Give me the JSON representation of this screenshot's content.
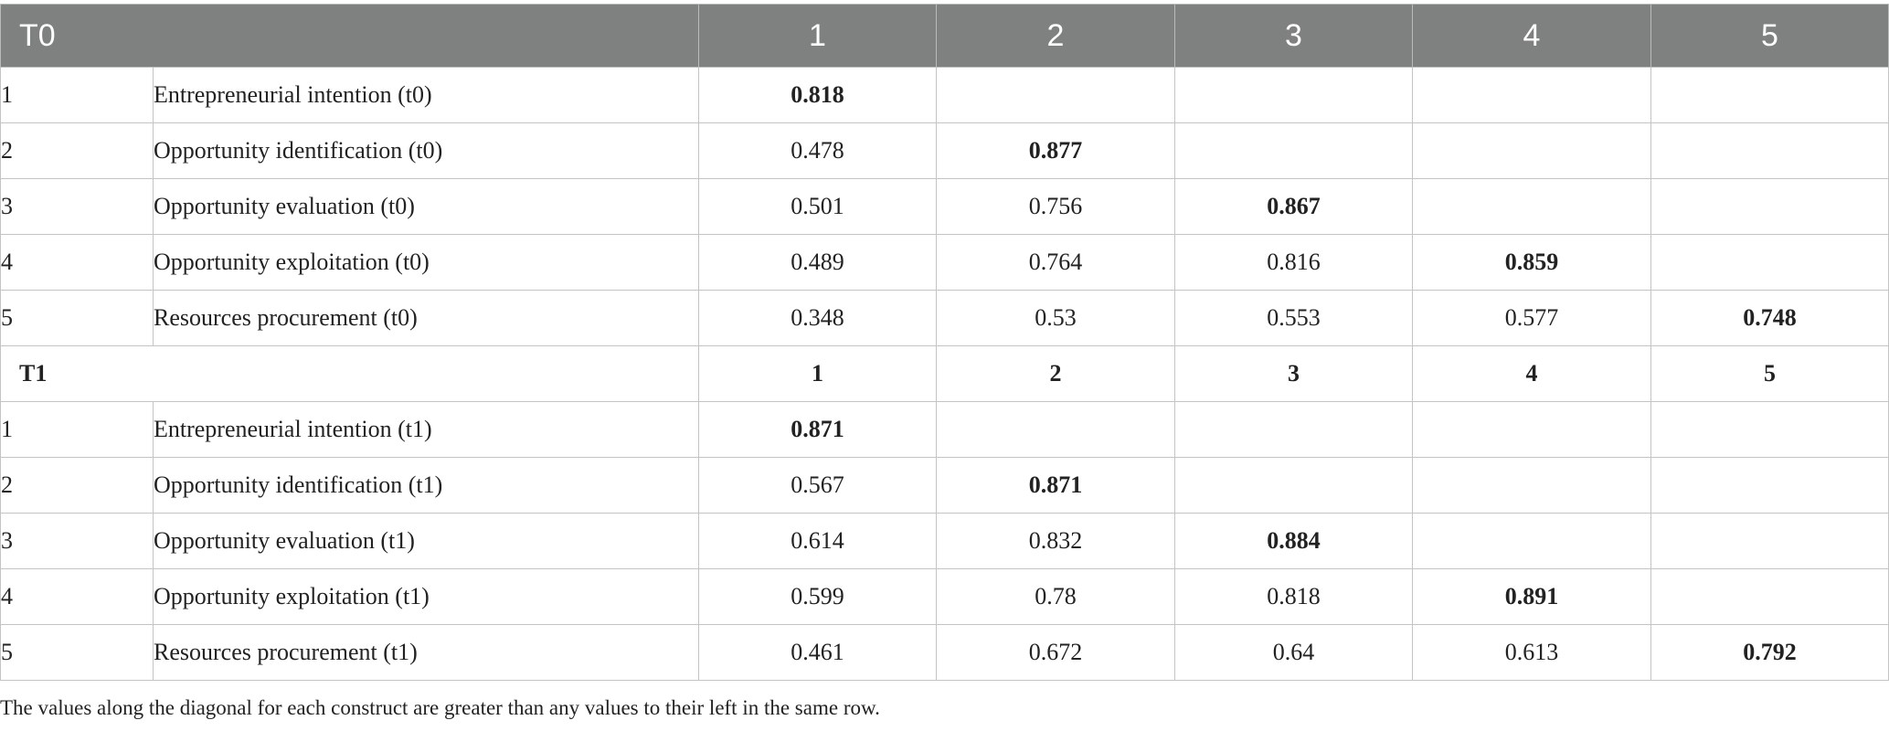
{
  "header": {
    "label": "T0",
    "columns": [
      "1",
      "2",
      "3",
      "4",
      "5"
    ]
  },
  "t0_rows": [
    {
      "index": "1",
      "label": "Entrepreneurial intention (t0)",
      "values": [
        "0.818",
        "",
        "",
        "",
        ""
      ]
    },
    {
      "index": "2",
      "label": "Opportunity identification (t0)",
      "values": [
        "0.478",
        "0.877",
        "",
        "",
        ""
      ]
    },
    {
      "index": "3",
      "label": "Opportunity evaluation (t0)",
      "values": [
        "0.501",
        "0.756",
        "0.867",
        "",
        ""
      ]
    },
    {
      "index": "4",
      "label": "Opportunity exploitation (t0)",
      "values": [
        "0.489",
        "0.764",
        "0.816",
        "0.859",
        ""
      ]
    },
    {
      "index": "5",
      "label": "Resources procurement (t0)",
      "values": [
        "0.348",
        "0.53",
        "0.553",
        "0.577",
        "0.748"
      ]
    }
  ],
  "subheader": {
    "label": "T1",
    "columns": [
      "1",
      "2",
      "3",
      "4",
      "5"
    ]
  },
  "t1_rows": [
    {
      "index": "1",
      "label": "Entrepreneurial intention (t1)",
      "values": [
        "0.871",
        "",
        "",
        "",
        ""
      ]
    },
    {
      "index": "2",
      "label": "Opportunity identification (t1)",
      "values": [
        "0.567",
        "0.871",
        "",
        "",
        ""
      ]
    },
    {
      "index": "3",
      "label": "Opportunity evaluation (t1)",
      "values": [
        "0.614",
        "0.832",
        "0.884",
        "",
        ""
      ]
    },
    {
      "index": "4",
      "label": "Opportunity exploitation (t1)",
      "values": [
        "0.599",
        "0.78",
        "0.818",
        "0.891",
        ""
      ]
    },
    {
      "index": "5",
      "label": "Resources procurement (t1)",
      "values": [
        "0.461",
        "0.672",
        "0.64",
        "0.613",
        "0.792"
      ]
    }
  ],
  "footnote": "The values along the diagonal for each construct are greater than any values to their left in the same row."
}
